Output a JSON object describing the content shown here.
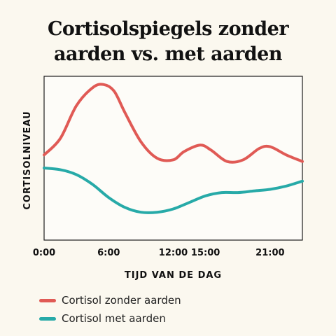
{
  "title_lines": [
    "Cortisolspiegels zonder",
    "aarden vs. met aarden"
  ],
  "chart_data": {
    "type": "line",
    "title": "Cortisolspiegels zonder aarden vs. met aarden",
    "xlabel": "TIJD VAN DE DAG",
    "ylabel": "CORTISOLNIVEAU",
    "x_ticks": [
      "0:00",
      "6:00",
      "12:00",
      "15:00",
      "21:00"
    ],
    "x_tick_hours": [
      0,
      6,
      12,
      15,
      21
    ],
    "xlim": [
      0,
      24
    ],
    "ylim": [
      0,
      100
    ],
    "grid": false,
    "legend_position": "bottom-left",
    "series": [
      {
        "name": "Cortisol zonder aarden",
        "color": "#e05a55",
        "x": [
          0,
          1.5,
          3,
          4.5,
          5.5,
          6.5,
          7.5,
          9,
          10.5,
          12,
          13,
          14.5,
          15.5,
          17,
          18.5,
          20,
          21,
          22.5,
          24
        ],
        "y": [
          52,
          62,
          82,
          93,
          95,
          91,
          78,
          60,
          50,
          49,
          54,
          58,
          55,
          48,
          49,
          56,
          57,
          52,
          48
        ]
      },
      {
        "name": "Cortisol met aarden",
        "color": "#27aaa8",
        "x": [
          0,
          1.5,
          3,
          4.5,
          6,
          7.5,
          9,
          10.5,
          12,
          13.5,
          15,
          16.5,
          18,
          19.5,
          21,
          22.5,
          24
        ],
        "y": [
          44,
          43,
          40,
          34,
          26,
          20,
          17,
          17,
          19,
          23,
          27,
          29,
          29,
          30,
          31,
          33,
          36
        ]
      }
    ]
  }
}
